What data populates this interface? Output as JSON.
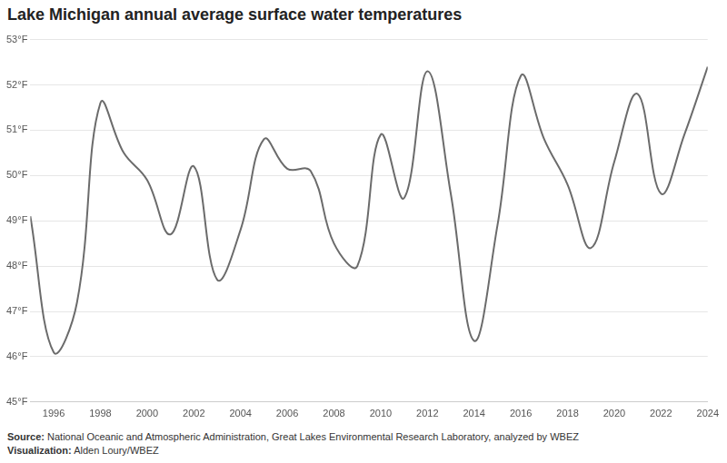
{
  "chart_data": {
    "type": "line",
    "title": "Lake Michigan annual average surface water temperatures",
    "source_label": "Source:",
    "source": "National Oceanic and Atmospheric Administration, Great Lakes Environmental Research Laboratory, analyzed by WBEZ",
    "credit_label": "Visualization:",
    "credit": "Alden Loury/WBEZ",
    "x": [
      1995,
      1996,
      1997,
      1998,
      1999,
      2000,
      2001,
      2002,
      2003,
      2004,
      2005,
      2006,
      2007,
      2008,
      2009,
      2010,
      2011,
      2012,
      2013,
      2014,
      2015,
      2016,
      2017,
      2018,
      2019,
      2020,
      2021,
      2022,
      2023,
      2024
    ],
    "values": [
      49.1,
      46.1,
      47.2,
      51.6,
      50.5,
      49.9,
      48.7,
      50.2,
      47.7,
      48.8,
      50.8,
      50.15,
      50.1,
      48.5,
      48.0,
      50.9,
      49.5,
      52.3,
      49.6,
      46.35,
      48.9,
      52.2,
      50.8,
      49.8,
      48.4,
      50.3,
      51.8,
      49.6,
      50.9,
      52.4
    ],
    "color": "#6b6b6b",
    "marker": "none",
    "xlim": [
      1995,
      2024
    ],
    "xticks": [
      1996,
      1998,
      2000,
      2002,
      2004,
      2006,
      2008,
      2010,
      2012,
      2014,
      2016,
      2018,
      2020,
      2022,
      2024
    ],
    "ylim": [
      45,
      53
    ],
    "yticks": [
      {
        "value": 45,
        "label": "45°F"
      },
      {
        "value": 46,
        "label": "46°F"
      },
      {
        "value": 47,
        "label": "47°F"
      },
      {
        "value": 48,
        "label": "48°F"
      },
      {
        "value": 49,
        "label": "49°F"
      },
      {
        "value": 50,
        "label": "50°F"
      },
      {
        "value": 51,
        "label": "51°F"
      },
      {
        "value": 52,
        "label": "52°F"
      },
      {
        "value": 53,
        "label": "53°F"
      }
    ],
    "grid": true
  }
}
